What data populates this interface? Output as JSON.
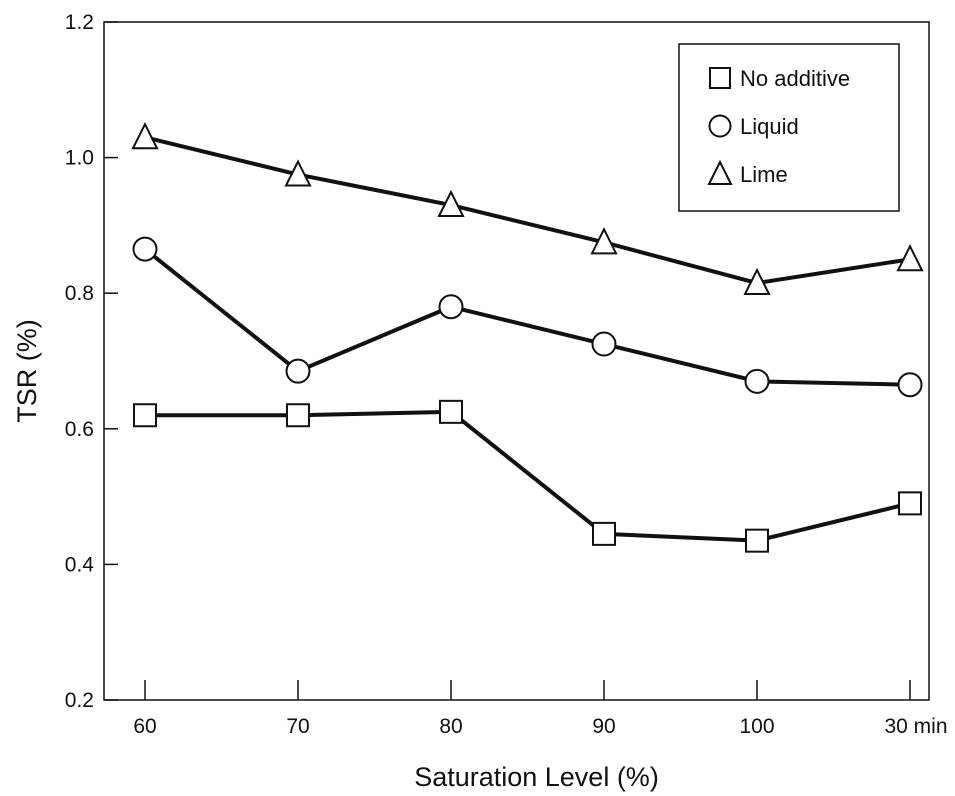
{
  "chart_data": {
    "type": "line",
    "title": "",
    "xlabel": "Saturation Level (%)",
    "ylabel": "TSR (%)",
    "categories": [
      "60",
      "70",
      "80",
      "90",
      "100",
      "30 min"
    ],
    "ylim": [
      0.2,
      1.2
    ],
    "yticks": [
      "0.2",
      "0.4",
      "0.6",
      "0.8",
      "1.0",
      "1.2"
    ],
    "grid": false,
    "legend_position": "top-right",
    "series": [
      {
        "name": "No additive",
        "marker": "square",
        "values": [
          0.62,
          0.62,
          0.625,
          0.445,
          0.435,
          0.49
        ]
      },
      {
        "name": "Liquid",
        "marker": "circle",
        "values": [
          0.865,
          0.685,
          0.78,
          0.725,
          0.67,
          0.665
        ]
      },
      {
        "name": "Lime",
        "marker": "triangle",
        "values": [
          1.03,
          0.975,
          0.93,
          0.875,
          0.815,
          0.85
        ]
      }
    ],
    "colors": {
      "line": "#111111",
      "marker_fill": "#ffffff",
      "background": "#ffffff"
    }
  }
}
